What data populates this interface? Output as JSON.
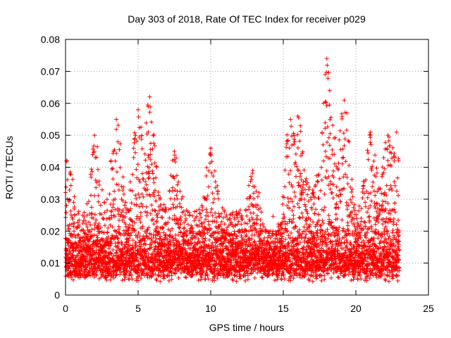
{
  "chart_data": {
    "type": "scatter",
    "title": "Day 303 of 2018, Rate Of TEC Index for receiver p029",
    "xlabel": "GPS time / hours",
    "ylabel": "ROTI / TECUs",
    "xlim": [
      0,
      25
    ],
    "ylim": [
      0,
      0.08
    ],
    "x_ticks": [
      0,
      5,
      10,
      15,
      20,
      25
    ],
    "x_tick_labels": [
      "0",
      "5",
      "10",
      "15",
      "20",
      "25"
    ],
    "y_ticks": [
      0,
      0.01,
      0.02,
      0.03,
      0.04,
      0.05,
      0.06,
      0.07,
      0.08
    ],
    "y_tick_labels": [
      "0",
      "0.01",
      "0.02",
      "0.03",
      "0.04",
      "0.05",
      "0.06",
      "0.07",
      "0.08"
    ],
    "grid": true,
    "marker": "+",
    "color": "#ff0000",
    "data_x_range": [
      0,
      23
    ],
    "series": [
      {
        "name": "ROTI",
        "note": "Dense scatter of ROTI values from 0 to 23 h; baseline typically 0.005-0.025 TECU, with peaks listed below",
        "peaks": [
          {
            "x": 0.1,
            "y": 0.042
          },
          {
            "x": 2.0,
            "y": 0.05
          },
          {
            "x": 3.5,
            "y": 0.055
          },
          {
            "x": 5.0,
            "y": 0.058
          },
          {
            "x": 5.8,
            "y": 0.062
          },
          {
            "x": 7.5,
            "y": 0.045
          },
          {
            "x": 10.0,
            "y": 0.046
          },
          {
            "x": 12.9,
            "y": 0.039
          },
          {
            "x": 15.5,
            "y": 0.055
          },
          {
            "x": 16.0,
            "y": 0.056
          },
          {
            "x": 18.0,
            "y": 0.074
          },
          {
            "x": 18.2,
            "y": 0.064
          },
          {
            "x": 19.2,
            "y": 0.061
          },
          {
            "x": 21.0,
            "y": 0.051
          },
          {
            "x": 22.2,
            "y": 0.05
          },
          {
            "x": 22.8,
            "y": 0.051
          }
        ]
      }
    ]
  }
}
